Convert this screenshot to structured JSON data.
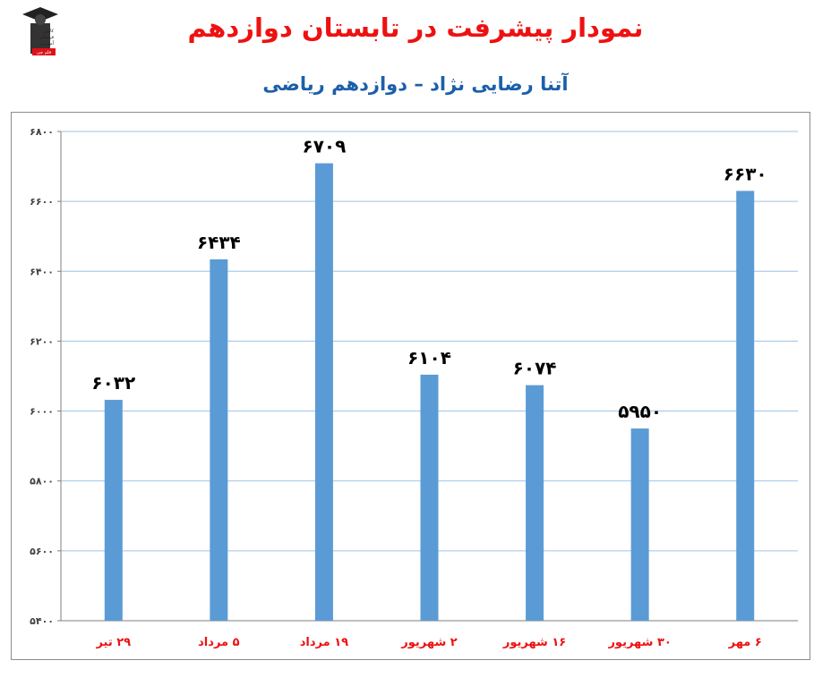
{
  "title": "نمودار پیشرفت در تابستان دوازدهم",
  "subtitle": "آتنا رضایی نژاد – دوازدهم ریاضی",
  "logo": {
    "icon": "graduate-figure-icon",
    "lines": [
      "کانون",
      "فرهنگی",
      "آموزش",
      "قلم چی"
    ],
    "accent": "#e0101a"
  },
  "colors": {
    "bar": "#5b9bd5",
    "title": "#ee1111",
    "subtitle": "#1b5faa",
    "category_label": "#ee1111",
    "value_label": "#000000",
    "grid": "#9dc3e6"
  },
  "chart_data": {
    "type": "bar",
    "categories": [
      "۲۹ تیر",
      "۵ مرداد",
      "۱۹ مرداد",
      "۲ شهریور",
      "۱۶ شهریور",
      "۳۰ شهریور",
      "۶ مهر"
    ],
    "values": [
      6032,
      6434,
      6709,
      6104,
      6074,
      5950,
      6630
    ],
    "value_labels": [
      "۶۰۳۲",
      "۶۴۳۴",
      "۶۷۰۹",
      "۶۱۰۴",
      "۶۰۷۴",
      "۵۹۵۰",
      "۶۶۳۰"
    ],
    "ylim": [
      5400,
      6800
    ],
    "yticks": [
      5400,
      5600,
      5800,
      6000,
      6200,
      6400,
      6600,
      6800
    ],
    "ytick_labels": [
      "۵۴۰۰",
      "۵۶۰۰",
      "۵۸۰۰",
      "۶۰۰۰",
      "۶۲۰۰",
      "۶۴۰۰",
      "۶۶۰۰",
      "۶۸۰۰"
    ],
    "grid": true,
    "legend": "none",
    "xlabel": "",
    "ylabel": ""
  }
}
